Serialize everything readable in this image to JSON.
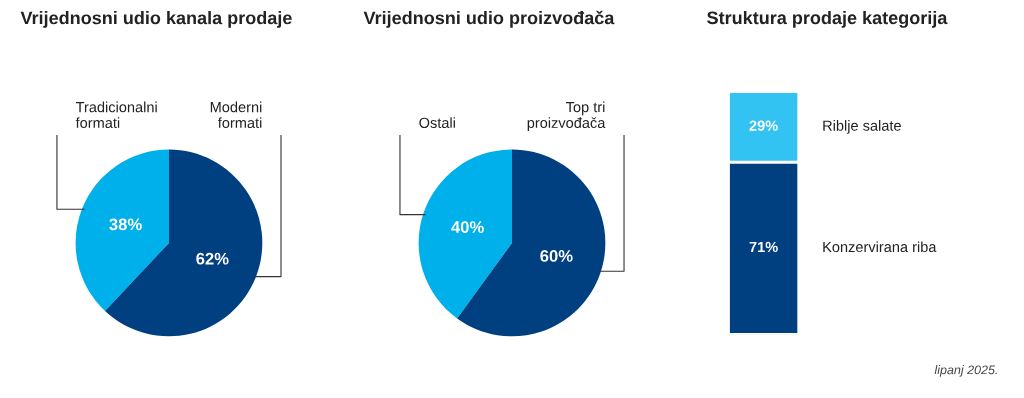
{
  "chart_data": [
    {
      "type": "pie",
      "title": "Vrijednosni udio kanala prodaje",
      "categories": [
        "Tradicionalni\nformati",
        "Moderni\nformati"
      ],
      "values": [
        38,
        62
      ],
      "colors": [
        "#00b0eb",
        "#003f80"
      ],
      "value_labels": [
        "38%",
        "62%"
      ]
    },
    {
      "type": "pie",
      "title": "Vrijednosni udio proizvođača",
      "categories": [
        "Ostali",
        "Top tri\nproizvođača"
      ],
      "values": [
        40,
        60
      ],
      "colors": [
        "#00b0eb",
        "#003f80"
      ],
      "value_labels": [
        "40%",
        "60%"
      ]
    },
    {
      "type": "bar",
      "title": "Struktura prodaje kategorija",
      "stacked": true,
      "categories": [
        null
      ],
      "series": [
        {
          "name": "Konzervirana riba",
          "color": "#003f80",
          "values": [
            71
          ],
          "value_labels": [
            "71%"
          ]
        },
        {
          "name": "Riblje salate",
          "color": "#33c3f2",
          "values": [
            29
          ],
          "value_labels": [
            "29%"
          ]
        }
      ],
      "annotations": [
        "lipanj 2025."
      ]
    }
  ]
}
